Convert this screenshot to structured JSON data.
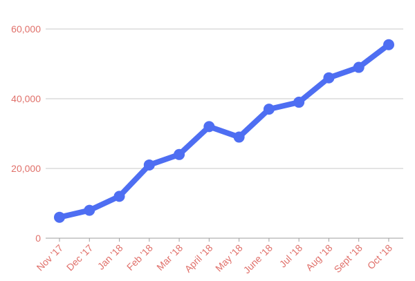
{
  "chart_data": {
    "type": "line",
    "title": "",
    "xlabel": "",
    "ylabel": "",
    "categories": [
      "Nov '17",
      "Dec '17",
      "Jan '18",
      "Feb '18",
      "Mar '18",
      "April '18",
      "May '18",
      "June '18",
      "Jul '18",
      "Aug '18",
      "Sept '18",
      "Oct '18"
    ],
    "series": [
      {
        "values": [
          6000,
          8000,
          12000,
          21000,
          24000,
          32000,
          29000,
          37000,
          39000,
          46000,
          49000,
          55500
        ]
      }
    ],
    "ylim": [
      0,
      60000
    ],
    "yticks": [
      0,
      20000,
      40000,
      60000
    ],
    "ytick_labels": [
      "0",
      "20,000",
      "40,000",
      "60,000"
    ],
    "grid": true,
    "legend": "none",
    "colors": {
      "line": "#4e6ef2",
      "tick_text": "#e0706a",
      "grid": "#c8c8c8",
      "axis": "#9e9e9e"
    }
  }
}
